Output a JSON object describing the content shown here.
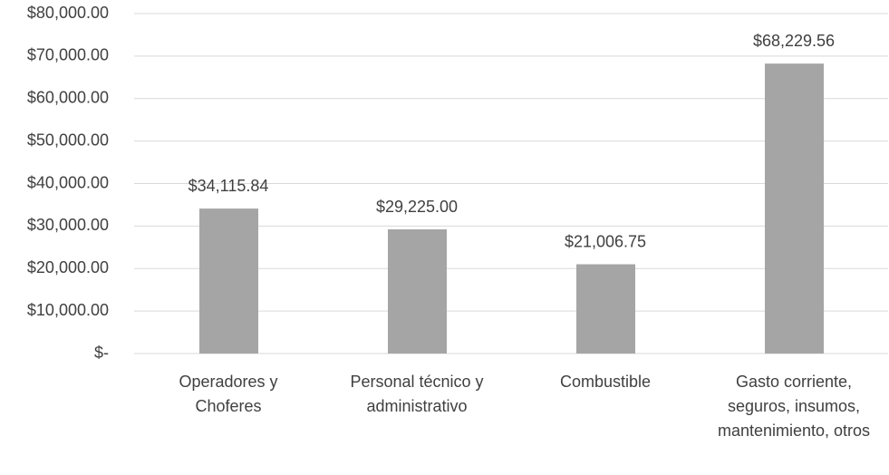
{
  "chart_data": {
    "type": "bar",
    "categories": [
      "Operadores y Choferes",
      "Personal técnico y administrativo",
      "Combustible",
      "Gasto corriente, seguros, insumos, mantenimiento, otros"
    ],
    "values": [
      34115.84,
      29225.0,
      21006.75,
      68229.56
    ],
    "value_labels": [
      "$34,115.84",
      "$29,225.00",
      "$21,006.75",
      "$68,229.56"
    ],
    "color": "#a5a5a5",
    "ylim": [
      0,
      80000
    ],
    "yticks": [
      {
        "value": 0,
        "label": "$-"
      },
      {
        "value": 10000,
        "label": "$10,000.00"
      },
      {
        "value": 20000,
        "label": "$20,000.00"
      },
      {
        "value": 30000,
        "label": "$30,000.00"
      },
      {
        "value": 40000,
        "label": "$40,000.00"
      },
      {
        "value": 50000,
        "label": "$50,000.00"
      },
      {
        "value": 60000,
        "label": "$60,000.00"
      },
      {
        "value": 70000,
        "label": "$70,000.00"
      },
      {
        "value": 80000,
        "label": "$80,000.00"
      }
    ],
    "grid": true
  }
}
